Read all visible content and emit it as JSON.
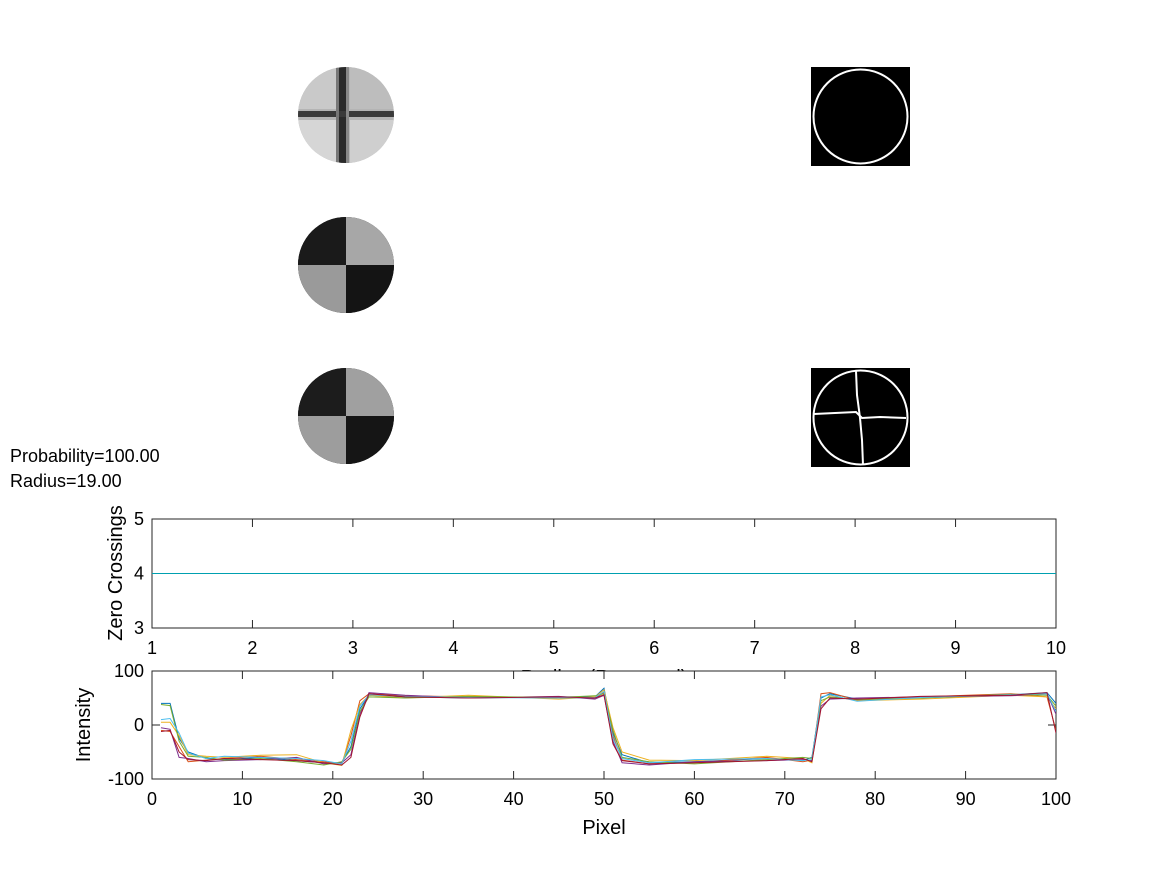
{
  "figure": {
    "probability_text": "Probability=100.00",
    "radius_text": "Radius=19.00"
  },
  "colors": {
    "series": [
      "#0072BD",
      "#D95319",
      "#EDB120",
      "#7E2F8E",
      "#77AC30",
      "#4DBEEE",
      "#A2142F"
    ],
    "cyan_line": "#00A0B0"
  },
  "images": [
    {
      "name": "template-cross-image",
      "pattern": "cross-lines"
    },
    {
      "name": "edge-circle-image",
      "pattern": "circle-edge"
    },
    {
      "name": "checker-image-1",
      "pattern": "checker"
    },
    {
      "name": "checker-image-2",
      "pattern": "checker"
    },
    {
      "name": "edge-cross-circle-image",
      "pattern": "circle-edge-cross"
    }
  ],
  "chart_data": [
    {
      "type": "line",
      "xlabel": "Radius (Reversed)",
      "ylabel": "Zero Crossings",
      "xlim": [
        1,
        10
      ],
      "ylim": [
        3,
        5
      ],
      "x_ticks": [
        "1",
        "2",
        "3",
        "4",
        "5",
        "6",
        "7",
        "8",
        "9",
        "10"
      ],
      "y_ticks": [
        "3",
        "4",
        "5"
      ],
      "grid": false,
      "series": [
        {
          "x": [
            1,
            2,
            3,
            4,
            5,
            6,
            7,
            8,
            9,
            10
          ],
          "values": [
            4,
            4,
            4,
            4,
            4,
            4,
            4,
            4,
            4,
            4
          ]
        }
      ]
    },
    {
      "type": "line",
      "xlabel": "Pixel",
      "ylabel": "Intensity",
      "xlim": [
        0,
        100
      ],
      "ylim": [
        -100,
        100
      ],
      "x_ticks": [
        "0",
        "10",
        "20",
        "30",
        "40",
        "50",
        "60",
        "70",
        "80",
        "90",
        "100"
      ],
      "y_ticks": [
        "-100",
        "0",
        "100"
      ],
      "grid": false,
      "series": [
        {
          "x": [
            1,
            2,
            3,
            4,
            6,
            8,
            12,
            16,
            19,
            21,
            22,
            23,
            24,
            28,
            35,
            45,
            49,
            50,
            51,
            52,
            55,
            60,
            68,
            72,
            73,
            74,
            75,
            78,
            85,
            95,
            99,
            100
          ],
          "values": [
            40,
            40,
            -25,
            -50,
            -62,
            -64,
            -60,
            -66,
            -70,
            -70,
            -40,
            30,
            55,
            52,
            50,
            52,
            52,
            68,
            -15,
            -55,
            -70,
            -68,
            -62,
            -66,
            -60,
            50,
            58,
            48,
            50,
            56,
            60,
            40
          ]
        },
        {
          "x": [
            1,
            2,
            3,
            4,
            6,
            8,
            12,
            16,
            19,
            21,
            22,
            23,
            24,
            28,
            35,
            45,
            49,
            50,
            51,
            52,
            55,
            60,
            68,
            72,
            73,
            74,
            75,
            78,
            85,
            95,
            99,
            100
          ],
          "values": [
            -10,
            -12,
            -40,
            -68,
            -65,
            -62,
            -58,
            -64,
            -68,
            -72,
            -20,
            45,
            58,
            54,
            52,
            50,
            50,
            60,
            -20,
            -65,
            -72,
            -70,
            -60,
            -68,
            -65,
            58,
            60,
            46,
            52,
            58,
            52,
            -10
          ]
        },
        {
          "x": [
            1,
            2,
            3,
            4,
            6,
            8,
            12,
            16,
            19,
            21,
            22,
            23,
            24,
            28,
            35,
            45,
            49,
            50,
            51,
            52,
            55,
            60,
            68,
            72,
            73,
            74,
            75,
            78,
            85,
            95,
            99,
            100
          ],
          "values": [
            5,
            5,
            -20,
            -55,
            -58,
            -60,
            -56,
            -55,
            -70,
            -75,
            -10,
            38,
            55,
            50,
            55,
            48,
            52,
            65,
            -5,
            -50,
            -65,
            -66,
            -58,
            -62,
            -70,
            40,
            55,
            45,
            48,
            55,
            52,
            30
          ]
        },
        {
          "x": [
            1,
            2,
            3,
            4,
            6,
            8,
            12,
            16,
            19,
            21,
            22,
            23,
            24,
            28,
            35,
            45,
            49,
            50,
            51,
            52,
            55,
            60,
            68,
            72,
            73,
            74,
            75,
            78,
            85,
            95,
            99,
            100
          ],
          "values": [
            -5,
            -8,
            -60,
            -62,
            -68,
            -66,
            -64,
            -60,
            -72,
            -70,
            -55,
            20,
            60,
            55,
            50,
            53,
            48,
            55,
            -30,
            -70,
            -74,
            -68,
            -66,
            -64,
            -66,
            35,
            48,
            50,
            52,
            54,
            58,
            20
          ]
        },
        {
          "x": [
            1,
            2,
            3,
            4,
            6,
            8,
            12,
            16,
            19,
            21,
            22,
            23,
            24,
            28,
            35,
            45,
            49,
            50,
            51,
            52,
            55,
            60,
            68,
            72,
            73,
            74,
            75,
            78,
            85,
            95,
            99,
            100
          ],
          "values": [
            38,
            36,
            -30,
            -58,
            -60,
            -65,
            -62,
            -68,
            -74,
            -68,
            -45,
            25,
            52,
            50,
            53,
            51,
            54,
            58,
            -10,
            -60,
            -68,
            -72,
            -64,
            -60,
            -62,
            45,
            52,
            47,
            50,
            57,
            55,
            35
          ]
        },
        {
          "x": [
            1,
            2,
            3,
            4,
            6,
            8,
            12,
            16,
            19,
            21,
            22,
            23,
            24,
            28,
            35,
            45,
            49,
            50,
            51,
            52,
            55,
            60,
            68,
            72,
            73,
            74,
            75,
            78,
            85,
            95,
            99,
            100
          ],
          "values": [
            10,
            12,
            -15,
            -52,
            -62,
            -58,
            -60,
            -62,
            -66,
            -72,
            -30,
            35,
            56,
            53,
            51,
            50,
            51,
            62,
            -25,
            -62,
            -70,
            -64,
            -62,
            -66,
            -64,
            52,
            56,
            44,
            51,
            56,
            58,
            25
          ]
        },
        {
          "x": [
            1,
            2,
            3,
            4,
            6,
            8,
            12,
            16,
            19,
            21,
            22,
            23,
            24,
            28,
            35,
            45,
            49,
            50,
            51,
            52,
            55,
            60,
            68,
            72,
            73,
            74,
            75,
            78,
            85,
            95,
            99,
            100
          ],
          "values": [
            -12,
            -10,
            -50,
            -64,
            -66,
            -62,
            -64,
            -66,
            -70,
            -74,
            -60,
            15,
            58,
            52,
            50,
            52,
            50,
            56,
            -35,
            -66,
            -72,
            -70,
            -66,
            -62,
            -68,
            30,
            50,
            48,
            53,
            55,
            60,
            -15
          ]
        }
      ]
    }
  ]
}
